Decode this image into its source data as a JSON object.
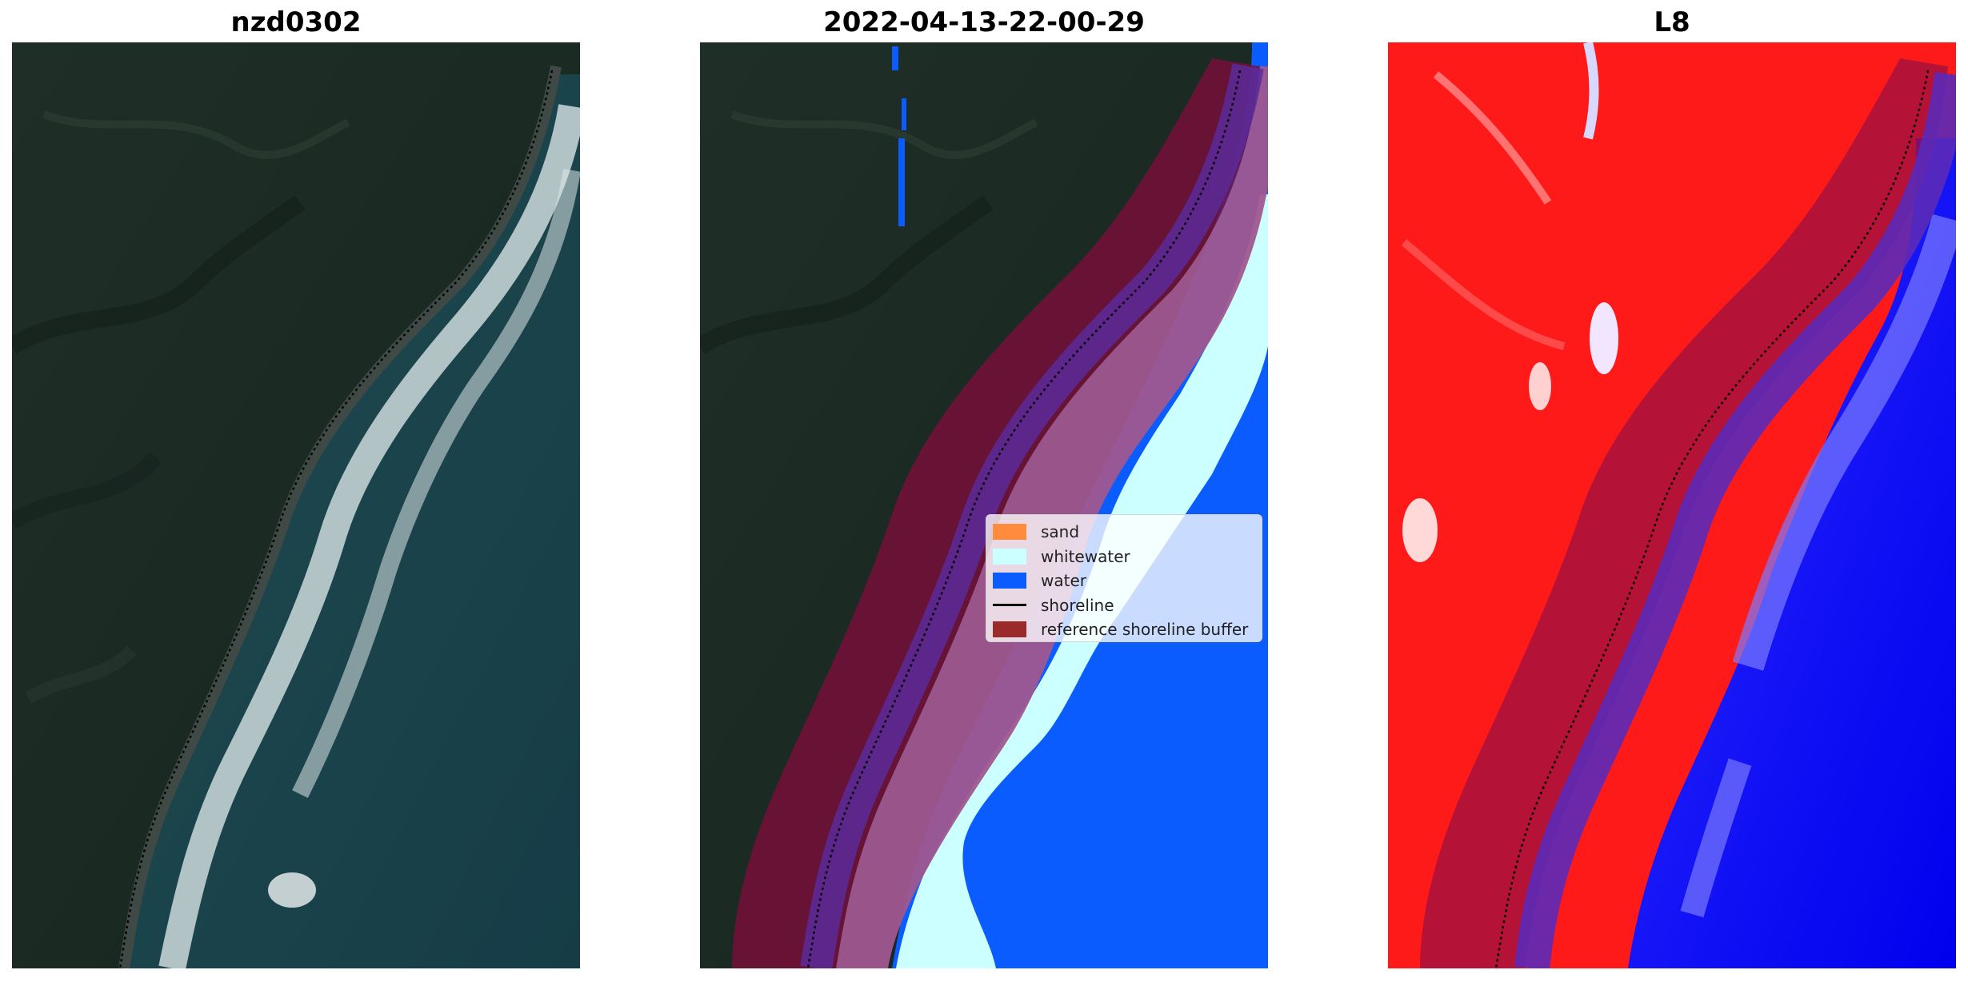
{
  "panels": [
    {
      "title": "nzd0302"
    },
    {
      "title": "2022-04-13-22-00-29"
    },
    {
      "title": "L8"
    }
  ],
  "legend": {
    "items": [
      {
        "label": "sand",
        "color": "#ff8c3c"
      },
      {
        "label": "whitewater",
        "color": "#ccffff"
      },
      {
        "label": "water",
        "color": "#0a5cff"
      },
      {
        "label": "shoreline",
        "color": "#000000"
      },
      {
        "label": "reference shoreline buffer",
        "color": "#9b2a2a"
      }
    ]
  },
  "colors": {
    "land_dark": "#1c2b24",
    "ocean_teal": "#1d4a52",
    "index_red": "#ff1a1a",
    "index_blue": "#0a0aff",
    "buffer_overlay": "#7a0f3a",
    "sand_overlay": "#a05a8a"
  }
}
